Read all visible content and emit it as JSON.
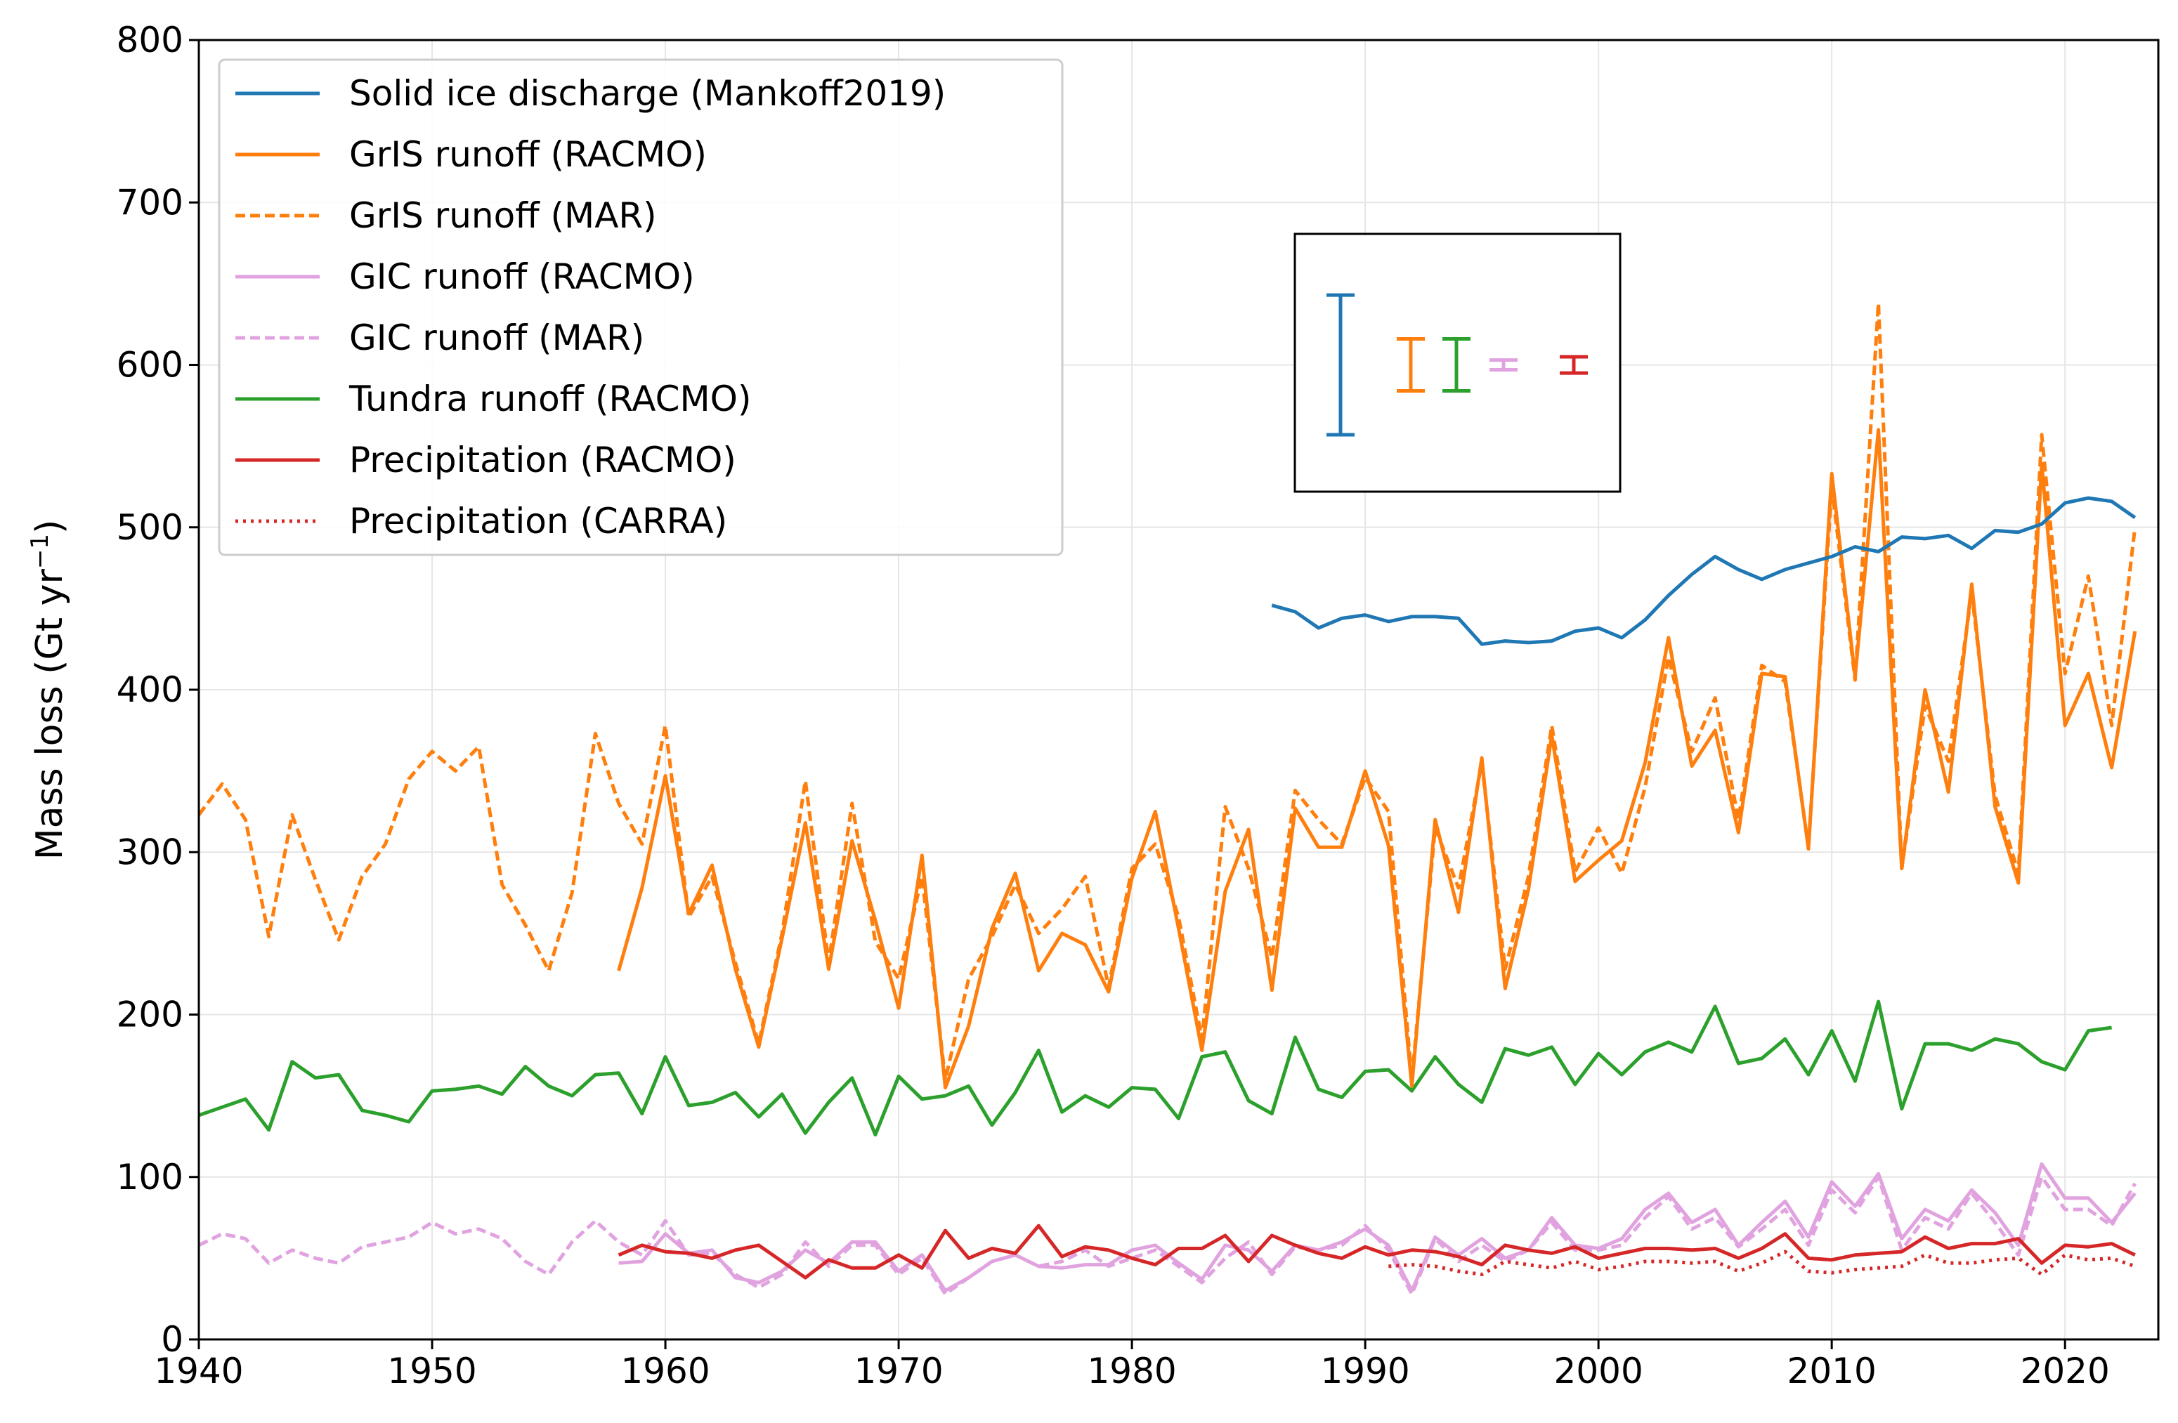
{
  "chart_data": {
    "type": "line",
    "title": "",
    "xlabel": "",
    "ylabel": "Mass loss (Gt yr",
    "ylabel_sup": "−1",
    "ylabel_close": ")",
    "xlim": [
      1940,
      2024
    ],
    "ylim": [
      0,
      800
    ],
    "xticks": [
      "1940",
      "1950",
      "1960",
      "1970",
      "1980",
      "1990",
      "2000",
      "2010",
      "2020"
    ],
    "yticks": [
      "0",
      "100",
      "200",
      "300",
      "400",
      "500",
      "600",
      "700",
      "800"
    ],
    "grid": true,
    "legend_position": "top-left",
    "series": [
      {
        "name": "Solid ice discharge (Mankoff2019)",
        "color": "#1f77b4",
        "style": "solid",
        "x": [
          1986,
          1987,
          1988,
          1989,
          1990,
          1991,
          1992,
          1993,
          1994,
          1995,
          1996,
          1997,
          1998,
          1999,
          2000,
          2001,
          2002,
          2003,
          2004,
          2005,
          2006,
          2007,
          2008,
          2009,
          2010,
          2011,
          2012,
          2013,
          2014,
          2015,
          2016,
          2017,
          2018,
          2019,
          2020,
          2021,
          2022,
          2023
        ],
        "y": [
          452,
          448,
          438,
          444,
          446,
          442,
          445,
          445,
          444,
          428,
          430,
          429,
          430,
          436,
          438,
          432,
          443,
          458,
          471,
          482,
          474,
          468,
          474,
          478,
          482,
          488,
          485,
          494,
          493,
          495,
          487,
          498,
          497,
          502,
          515,
          518,
          516,
          506
        ]
      },
      {
        "name": "GrIS runoff (RACMO)",
        "color": "#ff7f0e",
        "style": "solid",
        "x": [
          1958,
          1959,
          1960,
          1961,
          1962,
          1963,
          1964,
          1965,
          1966,
          1967,
          1968,
          1969,
          1970,
          1971,
          1972,
          1973,
          1974,
          1975,
          1976,
          1977,
          1978,
          1979,
          1980,
          1981,
          1982,
          1983,
          1984,
          1985,
          1986,
          1987,
          1988,
          1989,
          1990,
          1991,
          1992,
          1993,
          1994,
          1995,
          1996,
          1997,
          1998,
          1999,
          2000,
          2001,
          2002,
          2003,
          2004,
          2005,
          2006,
          2007,
          2008,
          2009,
          2010,
          2011,
          2012,
          2013,
          2014,
          2015,
          2016,
          2017,
          2018,
          2019,
          2020,
          2021,
          2022,
          2023
        ],
        "y": [
          227,
          278,
          347,
          262,
          292,
          228,
          180,
          247,
          318,
          228,
          307,
          258,
          204,
          298,
          155,
          193,
          253,
          287,
          227,
          250,
          243,
          214,
          284,
          325,
          253,
          178,
          276,
          314,
          215,
          327,
          303,
          303,
          350,
          304,
          156,
          320,
          263,
          358,
          216,
          277,
          372,
          282,
          295,
          307,
          355,
          432,
          353,
          375,
          312,
          410,
          408,
          302,
          533,
          408,
          560,
          290,
          400,
          337,
          465,
          328,
          281,
          539,
          378,
          410,
          352,
          436
        ]
      },
      {
        "name": "GrIS runoff (MAR)",
        "color": "#ff7f0e",
        "style": "dashed",
        "x": [
          1940,
          1941,
          1942,
          1943,
          1944,
          1945,
          1946,
          1947,
          1948,
          1949,
          1950,
          1951,
          1952,
          1953,
          1954,
          1955,
          1956,
          1957,
          1958,
          1959,
          1960,
          1961,
          1962,
          1963,
          1964,
          1965,
          1966,
          1967,
          1968,
          1969,
          1970,
          1971,
          1972,
          1973,
          1974,
          1975,
          1976,
          1977,
          1978,
          1979,
          1980,
          1981,
          1982,
          1983,
          1984,
          1985,
          1986,
          1987,
          1988,
          1989,
          1990,
          1991,
          1992,
          1993,
          1994,
          1995,
          1996,
          1997,
          1998,
          1999,
          2000,
          2001,
          2002,
          2003,
          2004,
          2005,
          2006,
          2007,
          2008,
          2009,
          2010,
          2011,
          2012,
          2013,
          2014,
          2015,
          2016,
          2017,
          2018,
          2019,
          2020,
          2021,
          2022,
          2023
        ],
        "y": [
          323,
          342,
          320,
          248,
          323,
          283,
          246,
          285,
          305,
          345,
          362,
          350,
          365,
          280,
          255,
          227,
          275,
          373,
          330,
          305,
          378,
          260,
          285,
          232,
          182,
          250,
          344,
          232,
          330,
          245,
          222,
          285,
          160,
          222,
          248,
          280,
          250,
          265,
          285,
          217,
          290,
          305,
          260,
          185,
          328,
          290,
          235,
          338,
          320,
          305,
          346,
          325,
          160,
          315,
          278,
          355,
          228,
          285,
          378,
          288,
          315,
          287,
          340,
          420,
          362,
          395,
          320,
          415,
          405,
          303,
          525,
          406,
          638,
          290,
          390,
          356,
          460,
          335,
          287,
          557,
          410,
          470,
          378,
          500
        ]
      },
      {
        "name": "GIC runoff (RACMO)",
        "color": "#e377c2",
        "style": "solid",
        "x": [
          1958,
          1959,
          1960,
          1961,
          1962,
          1963,
          1964,
          1965,
          1966,
          1967,
          1968,
          1969,
          1970,
          1971,
          1972,
          1973,
          1974,
          1975,
          1976,
          1977,
          1978,
          1979,
          1980,
          1981,
          1982,
          1983,
          1984,
          1985,
          1986,
          1987,
          1988,
          1989,
          1990,
          1991,
          1992,
          1993,
          1994,
          1995,
          1996,
          1997,
          1998,
          1999,
          2000,
          2001,
          2002,
          2003,
          2004,
          2005,
          2006,
          2007,
          2008,
          2009,
          2010,
          2011,
          2012,
          2013,
          2014,
          2015,
          2016,
          2017,
          2018,
          2019,
          2020,
          2021,
          2022,
          2023
        ],
        "y": [
          47,
          48,
          65,
          53,
          55,
          38,
          35,
          42,
          55,
          47,
          60,
          60,
          42,
          52,
          30,
          38,
          48,
          52,
          45,
          44,
          46,
          46,
          55,
          58,
          47,
          37,
          58,
          55,
          42,
          58,
          55,
          60,
          68,
          58,
          30,
          63,
          52,
          62,
          50,
          55,
          75,
          58,
          56,
          62,
          80,
          90,
          72,
          80,
          58,
          72,
          85,
          63,
          97,
          82,
          102,
          62,
          80,
          73,
          92,
          78,
          58,
          108,
          87,
          87,
          72,
          90
        ]
      },
      {
        "name": "GIC runoff (MAR)",
        "color": "#e377c2",
        "style": "dashed",
        "x": [
          1940,
          1941,
          1942,
          1943,
          1944,
          1945,
          1946,
          1947,
          1948,
          1949,
          1950,
          1951,
          1952,
          1953,
          1954,
          1955,
          1956,
          1957,
          1958,
          1959,
          1960,
          1961,
          1962,
          1963,
          1964,
          1965,
          1966,
          1967,
          1968,
          1969,
          1970,
          1971,
          1972,
          1973,
          1974,
          1975,
          1976,
          1977,
          1978,
          1979,
          1980,
          1981,
          1982,
          1983,
          1984,
          1985,
          1986,
          1987,
          1988,
          1989,
          1990,
          1991,
          1992,
          1993,
          1994,
          1995,
          1996,
          1997,
          1998,
          1999,
          2000,
          2001,
          2002,
          2003,
          2004,
          2005,
          2006,
          2007,
          2008,
          2009,
          2010,
          2011,
          2012,
          2013,
          2014,
          2015,
          2016,
          2017,
          2018,
          2019,
          2020,
          2021,
          2022,
          2023
        ],
        "y": [
          58,
          65,
          62,
          47,
          55,
          50,
          47,
          57,
          60,
          63,
          72,
          65,
          68,
          62,
          48,
          40,
          60,
          73,
          60,
          52,
          73,
          52,
          53,
          40,
          32,
          40,
          60,
          45,
          58,
          58,
          40,
          50,
          28,
          38,
          48,
          52,
          45,
          48,
          55,
          45,
          50,
          55,
          45,
          35,
          50,
          60,
          40,
          57,
          55,
          58,
          70,
          55,
          28,
          62,
          48,
          58,
          48,
          55,
          72,
          55,
          55,
          58,
          75,
          88,
          68,
          75,
          57,
          68,
          80,
          58,
          92,
          78,
          100,
          55,
          75,
          68,
          90,
          72,
          52,
          100,
          80,
          80,
          70,
          96
        ]
      },
      {
        "name": "Tundra runoff (RACMO)",
        "color": "#2ca02c",
        "style": "solid",
        "x": [
          1940,
          1941,
          1942,
          1943,
          1944,
          1945,
          1946,
          1947,
          1948,
          1949,
          1950,
          1951,
          1952,
          1953,
          1954,
          1955,
          1956,
          1957,
          1958,
          1959,
          1960,
          1961,
          1962,
          1963,
          1964,
          1965,
          1966,
          1967,
          1968,
          1969,
          1970,
          1971,
          1972,
          1973,
          1974,
          1975,
          1976,
          1977,
          1978,
          1979,
          1980,
          1981,
          1982,
          1983,
          1984,
          1985,
          1986,
          1987,
          1988,
          1989,
          1990,
          1991,
          1992,
          1993,
          1994,
          1995,
          1996,
          1997,
          1998,
          1999,
          2000,
          2001,
          2002,
          2003,
          2004,
          2005,
          2006,
          2007,
          2008,
          2009,
          2010,
          2011,
          2012,
          2013,
          2014,
          2015,
          2016,
          2017,
          2018,
          2019,
          2020,
          2021,
          2022
        ],
        "y": [
          138,
          143,
          148,
          129,
          171,
          161,
          163,
          141,
          138,
          134,
          153,
          154,
          156,
          151,
          168,
          156,
          150,
          163,
          164,
          139,
          174,
          144,
          146,
          152,
          137,
          151,
          127,
          146,
          161,
          126,
          162,
          148,
          150,
          156,
          132,
          152,
          178,
          140,
          150,
          143,
          155,
          154,
          136,
          174,
          177,
          147,
          139,
          186,
          154,
          149,
          165,
          166,
          153,
          174,
          157,
          146,
          179,
          175,
          180,
          157,
          176,
          163,
          177,
          183,
          177,
          205,
          170,
          173,
          185,
          163,
          190,
          159,
          208,
          142,
          182,
          182,
          178,
          185,
          182,
          171,
          166,
          190,
          192
        ]
      },
      {
        "name": "Precipitation (RACMO)",
        "color": "#d62728",
        "style": "solid",
        "x": [
          1958,
          1959,
          1960,
          1961,
          1962,
          1963,
          1964,
          1965,
          1966,
          1967,
          1968,
          1969,
          1970,
          1971,
          1972,
          1973,
          1974,
          1975,
          1976,
          1977,
          1978,
          1979,
          1980,
          1981,
          1982,
          1983,
          1984,
          1985,
          1986,
          1987,
          1988,
          1989,
          1990,
          1991,
          1992,
          1993,
          1994,
          1995,
          1996,
          1997,
          1998,
          1999,
          2000,
          2001,
          2002,
          2003,
          2004,
          2005,
          2006,
          2007,
          2008,
          2009,
          2010,
          2011,
          2012,
          2013,
          2014,
          2015,
          2016,
          2017,
          2018,
          2019,
          2020,
          2021,
          2022,
          2023
        ],
        "y": [
          52,
          58,
          54,
          53,
          50,
          55,
          58,
          48,
          38,
          49,
          44,
          44,
          52,
          44,
          67,
          50,
          56,
          53,
          70,
          51,
          57,
          55,
          50,
          46,
          56,
          56,
          64,
          48,
          64,
          58,
          53,
          50,
          57,
          52,
          55,
          54,
          51,
          46,
          58,
          55,
          53,
          57,
          50,
          53,
          56,
          56,
          55,
          56,
          50,
          56,
          65,
          50,
          49,
          52,
          53,
          54,
          63,
          56,
          59,
          59,
          62,
          47,
          58,
          57,
          59,
          52
        ]
      },
      {
        "name": "Precipitation (CARRA)",
        "color": "#d62728",
        "style": "dotted",
        "x": [
          1991,
          1992,
          1993,
          1994,
          1995,
          1996,
          1997,
          1998,
          1999,
          2000,
          2001,
          2002,
          2003,
          2004,
          2005,
          2006,
          2007,
          2008,
          2009,
          2010,
          2011,
          2012,
          2013,
          2014,
          2015,
          2016,
          2017,
          2018,
          2019,
          2020,
          2021,
          2022,
          2023
        ],
        "y": [
          45,
          46,
          45,
          42,
          40,
          48,
          46,
          44,
          48,
          43,
          45,
          48,
          48,
          47,
          48,
          42,
          47,
          54,
          42,
          41,
          43,
          44,
          45,
          52,
          47,
          47,
          49,
          50,
          40,
          52,
          49,
          50,
          45
        ]
      }
    ],
    "error_bars": [
      {
        "color": "#1f77b4",
        "center": 600,
        "half": 43
      },
      {
        "color": "#ff7f0e",
        "center": 600,
        "half": 16
      },
      {
        "color": "#2ca02c",
        "center": 600,
        "half": 16
      },
      {
        "color": "#e377c2",
        "center": 600,
        "half": 3
      },
      {
        "color": "#d62728",
        "center": 600,
        "half": 5
      }
    ]
  }
}
